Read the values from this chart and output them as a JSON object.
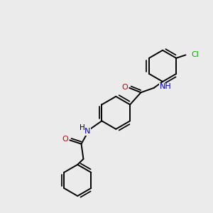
{
  "background_color": "#ebebeb",
  "bond_color": "#000000",
  "atom_colors": {
    "O": "#cc0000",
    "N": "#0000cc",
    "Cl": "#00aa00",
    "C": "#000000",
    "H": "#000000"
  },
  "figsize": [
    3.0,
    3.0
  ],
  "dpi": 100,
  "lw": 1.4,
  "fs": 7.5
}
